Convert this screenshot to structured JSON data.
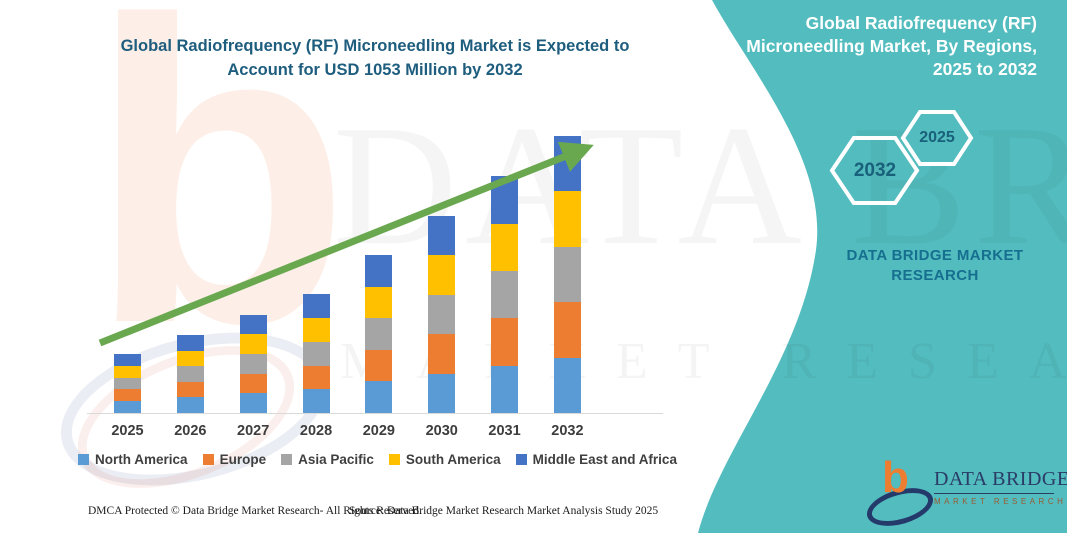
{
  "header": {
    "title_line1": "Global Radiofrequency (RF) Microneedling Market is Expected to",
    "title_line2": "Account for USD 1053 Million by 2032"
  },
  "side_panel": {
    "title_lines": [
      "Global Radiofrequency (RF)",
      "Microneedling Market, By Regions,",
      "2025 to 2032"
    ],
    "hexagons": [
      {
        "label": "2032"
      },
      {
        "label": "2025"
      }
    ],
    "brand_line1": "DATA BRIDGE MARKET",
    "brand_line2": "RESEARCH",
    "background_color": "#52BCBE"
  },
  "chart_data": {
    "type": "bar",
    "stacked": true,
    "title": "Global Radiofrequency (RF) Microneedling Market is Expected to Account for USD 1053 Million by 2032",
    "unit": "USD Million",
    "categories": [
      "2025",
      "2026",
      "2027",
      "2028",
      "2029",
      "2030",
      "2031",
      "2032"
    ],
    "series": [
      {
        "name": "North America",
        "color": "#5B9BD5",
        "values": [
          45,
          59,
          75,
          90,
          120,
          150,
          180,
          211
        ]
      },
      {
        "name": "Europe",
        "color": "#ED7D31",
        "values": [
          45,
          59,
          75,
          90,
          120,
          150,
          180,
          211
        ]
      },
      {
        "name": "Asia Pacific",
        "color": "#A5A5A5",
        "values": [
          45,
          59,
          75,
          90,
          120,
          150,
          180,
          211
        ]
      },
      {
        "name": "South America",
        "color": "#FFC000",
        "values": [
          45,
          60,
          74,
          91,
          120,
          150,
          180,
          210
        ]
      },
      {
        "name": "Middle East and Africa",
        "color": "#4472C4",
        "values": [
          44,
          60,
          74,
          91,
          121,
          149,
          181,
          210
        ]
      }
    ],
    "totals": [
      224,
      297,
      373,
      452,
      601,
      749,
      901,
      1053
    ],
    "xlabel": "",
    "ylabel": "",
    "ylim": [
      0,
      1053
    ],
    "gridlines": false,
    "legend_position": "bottom",
    "annotations": [
      "green upward trend arrow"
    ]
  },
  "watermark": {
    "letter": "b",
    "line1": "DATA BRIDGE",
    "line2": "MARKET RESEARCH"
  },
  "footer": {
    "left": "DMCA Protected © Data Bridge Market Research-  All Rights Reserved.",
    "source": "Source: Data Bridge Market Research  Market Analysis Study 2025"
  },
  "logo": {
    "name": "DATA BRIDGE",
    "subtext": "MARKET RESEARCH"
  },
  "colors": {
    "accent_teal": "#52BCBE",
    "title_text": "#1e5d7e",
    "arrow_green": "#69A84F",
    "brand_navy": "#2A3B66",
    "brand_orange": "#ED7D31"
  }
}
